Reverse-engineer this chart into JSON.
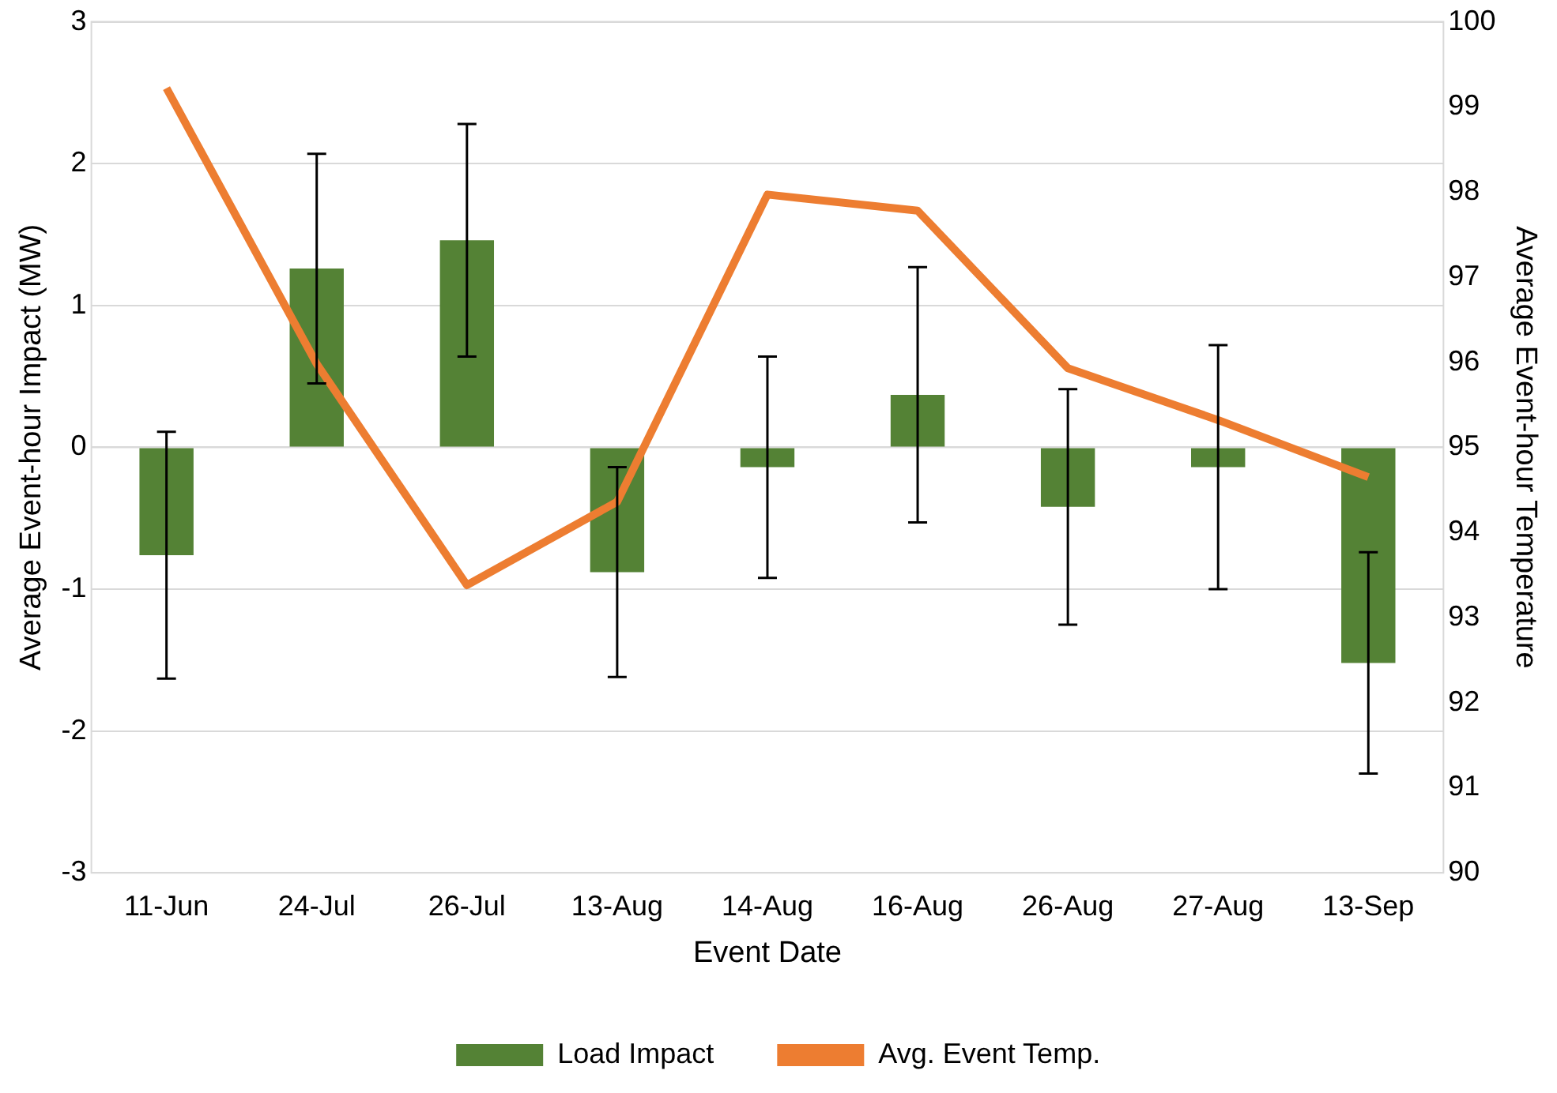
{
  "chart_data": {
    "type": "bar",
    "xlabel": "Event Date",
    "ylabel": "Average Event-hour Impact (MW)",
    "y2label": "Average Event-hour Temperature",
    "categories": [
      "11-Jun",
      "24-Jul",
      "26-Jul",
      "13-Aug",
      "14-Aug",
      "16-Aug",
      "26-Aug",
      "27-Aug",
      "13-Sep"
    ],
    "series": [
      {
        "name": "Load Impact",
        "color": "#548235",
        "values": [
          -0.76,
          1.26,
          1.46,
          -0.88,
          -0.14,
          0.37,
          -0.42,
          -0.14,
          -1.52
        ],
        "errors": [
          0.87,
          0.81,
          0.82,
          0.74,
          0.78,
          0.9,
          0.83,
          0.86,
          0.78
        ]
      },
      {
        "name": "Avg. Event Temp.",
        "type": "line",
        "axis": "y2",
        "color": "#ed7d31",
        "values": [
          99.22,
          95.98,
          93.38,
          94.36,
          97.97,
          97.78,
          95.93,
          95.32,
          94.65
        ]
      }
    ],
    "ylim": [
      -3,
      3
    ],
    "yticks": [
      -3,
      -2,
      -1,
      0,
      1,
      2,
      3
    ],
    "y2lim": [
      90,
      100
    ],
    "y2ticks": [
      90,
      91,
      92,
      93,
      94,
      95,
      96,
      97,
      98,
      99,
      100
    ],
    "grid": "y",
    "legend": "bottom",
    "marker": "none"
  }
}
